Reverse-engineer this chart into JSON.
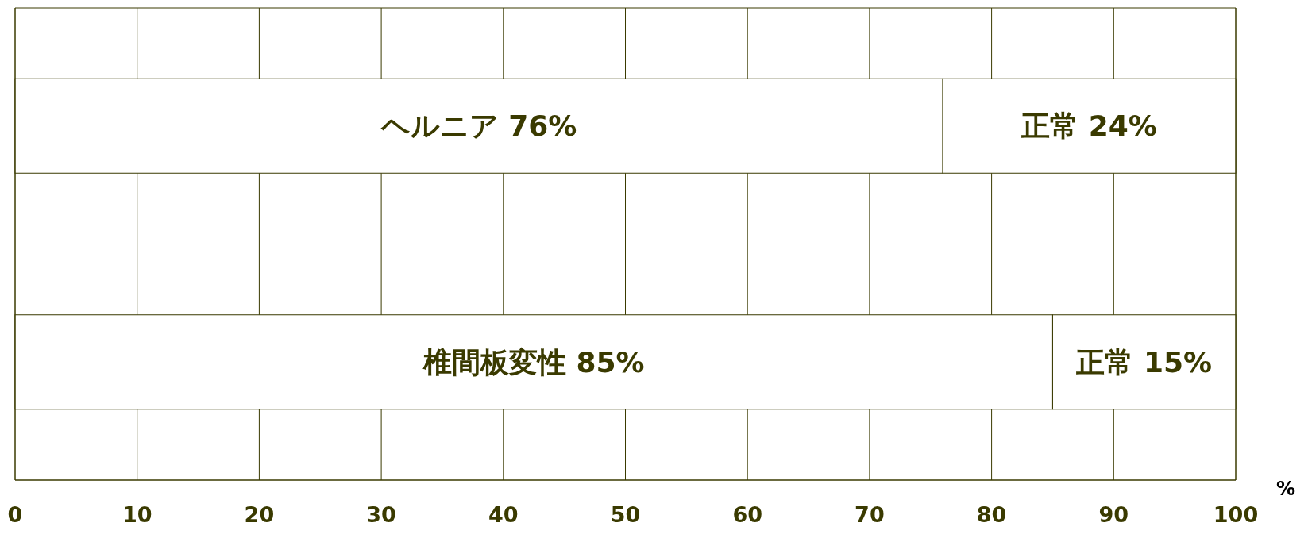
{
  "chart_data": {
    "type": "bar",
    "orientation": "horizontal",
    "stacked": true,
    "categories": [
      null,
      null
    ],
    "series": [
      {
        "color": "#ffffff",
        "values": [
          76,
          85
        ],
        "value_labels": [
          "ヘルニア  76%",
          "椎間板変性  85%"
        ]
      },
      {
        "color": "#ffffff",
        "values": [
          24,
          15
        ],
        "value_labels": [
          "正常 24%",
          "正常 15%"
        ]
      }
    ],
    "xlim": [
      0,
      100
    ],
    "xticks": [
      0,
      10,
      20,
      30,
      40,
      50,
      60,
      70,
      80,
      90,
      100
    ],
    "xlabel": "%",
    "grid": "x",
    "tick_labels": "x"
  }
}
